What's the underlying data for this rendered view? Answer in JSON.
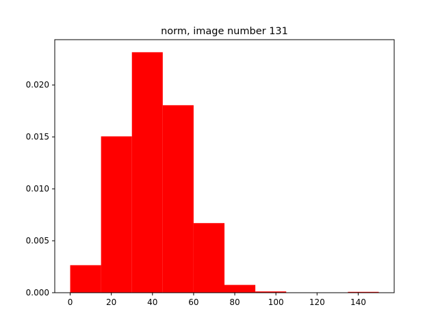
{
  "chart_data": {
    "type": "bar",
    "title": "norm, image number 131",
    "xlabel": "",
    "ylabel": "",
    "bin_edges": [
      0,
      15,
      30,
      45,
      60,
      75,
      90,
      105,
      120,
      135,
      150
    ],
    "values": [
      0.00265,
      0.01505,
      0.02315,
      0.01805,
      0.0067,
      0.00075,
      0.00012,
      0.0,
      0.0,
      8e-05
    ],
    "xlim": [
      -7.5,
      157.5
    ],
    "ylim": [
      0,
      0.02436
    ],
    "x_ticks": [
      0,
      20,
      40,
      60,
      80,
      100,
      120,
      140
    ],
    "x_tick_labels": [
      "0",
      "20",
      "40",
      "60",
      "80",
      "100",
      "120",
      "140"
    ],
    "y_ticks": [
      0,
      0.005,
      0.01,
      0.015,
      0.02
    ],
    "y_tick_labels": [
      "0.000",
      "0.005",
      "0.010",
      "0.015",
      "0.020"
    ],
    "bar_color": "#ff0000",
    "grid": false,
    "legend": "none"
  }
}
